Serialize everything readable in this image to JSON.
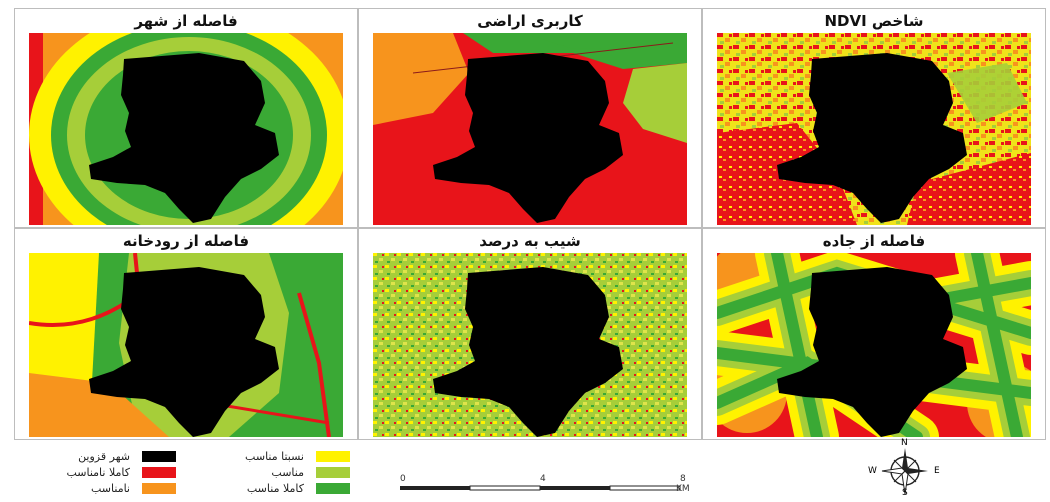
{
  "panels": [
    {
      "id": "city-distance",
      "title": "فاصله از شهر"
    },
    {
      "id": "land-use",
      "title": "کاربری اراضی"
    },
    {
      "id": "ndvi",
      "title": "شاخص NDVI"
    },
    {
      "id": "river-distance",
      "title": "فاصله از رودخانه"
    },
    {
      "id": "slope",
      "title": "شیب به درصد"
    },
    {
      "id": "road-distance",
      "title": "فاصله از جاده"
    }
  ],
  "legend": {
    "items": [
      {
        "label": "شهر قزوین",
        "color": "#000000"
      },
      {
        "label": "کاملا نامناسب",
        "color": "#e8141a"
      },
      {
        "label": "نامناسب",
        "color": "#f7941d"
      },
      {
        "label": "نسبتا مناسب",
        "color": "#fff200"
      },
      {
        "label": "مناسب",
        "color": "#a6ce39"
      },
      {
        "label": "کاملا مناسب",
        "color": "#3aa935"
      }
    ]
  },
  "scale_bar": {
    "ticks": [
      "0",
      "4",
      "8"
    ],
    "unit": "KM"
  },
  "compass": {
    "n": "N",
    "s": "S",
    "e": "E",
    "w": "W"
  }
}
